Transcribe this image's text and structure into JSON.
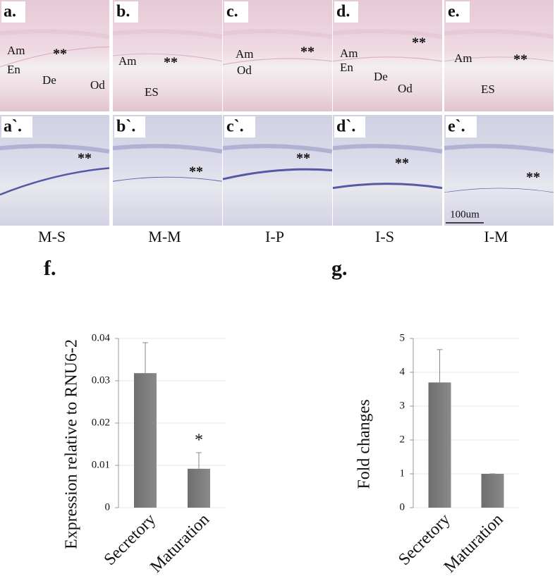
{
  "figure": {
    "row1": [
      {
        "letter": "a.",
        "labels": [
          "Am",
          "**",
          "En",
          "De",
          "Od"
        ]
      },
      {
        "letter": "b.",
        "labels": [
          "Am",
          "**",
          "ES"
        ]
      },
      {
        "letter": "c.",
        "labels": [
          "Am",
          "**",
          "Od"
        ]
      },
      {
        "letter": "d.",
        "labels": [
          "**",
          "Am",
          "En",
          "De",
          "Od"
        ]
      },
      {
        "letter": "e.",
        "labels": [
          "Am",
          "**",
          "ES"
        ]
      }
    ],
    "row2": [
      {
        "letter": "a`.",
        "labels": [
          "**"
        ]
      },
      {
        "letter": "b`.",
        "labels": [
          "**"
        ]
      },
      {
        "letter": "c`.",
        "labels": [
          "**"
        ]
      },
      {
        "letter": "d`.",
        "labels": [
          "**"
        ]
      },
      {
        "letter": "e`.",
        "labels": [
          "**"
        ]
      }
    ],
    "scale_bar": "100um",
    "columns": [
      "M-S",
      "M-M",
      "I-P",
      "I-S",
      "I-M"
    ]
  },
  "chart_data": [
    {
      "type": "bar",
      "panel": "f.",
      "y_label": "Expression relative to RNU6-2",
      "categories": [
        "Secretory",
        "Maturation"
      ],
      "values": [
        0.0318,
        0.0092
      ],
      "errors": [
        0.0072,
        0.0038
      ],
      "annotation": "*",
      "color": "#777777",
      "ylim": [
        0,
        0.04
      ],
      "yticks": [
        0,
        0.01,
        0.02,
        0.03,
        0.04
      ],
      "grid": true
    },
    {
      "type": "bar",
      "panel": "g.",
      "y_label": "Fold changes",
      "categories": [
        "Secretory",
        "Maturation"
      ],
      "values": [
        3.7,
        1
      ],
      "errors": [
        0.97,
        0
      ],
      "color": "#777777",
      "ylim": [
        0,
        5
      ],
      "yticks": [
        0,
        1,
        2,
        3,
        4,
        5
      ],
      "grid": true
    }
  ]
}
